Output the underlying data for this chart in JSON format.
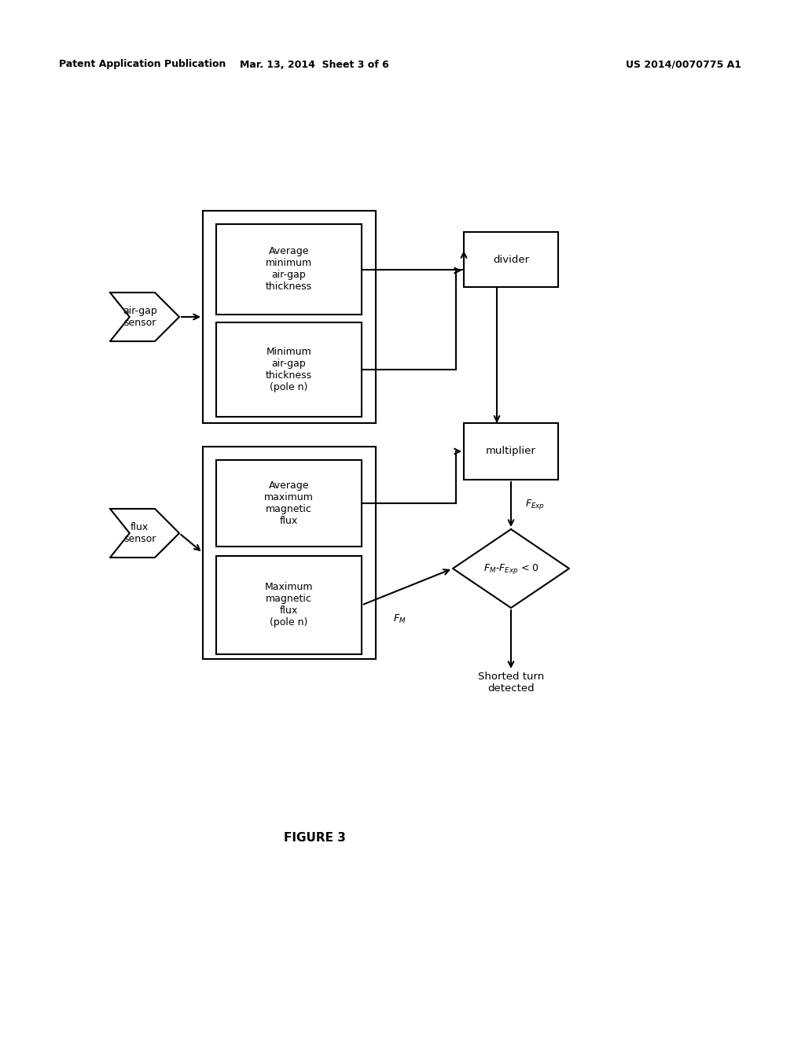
{
  "header_left": "Patent Application Publication",
  "header_mid": "Mar. 13, 2014  Sheet 3 of 6",
  "header_right": "US 2014/0070775 A1",
  "figure_label": "FIGURE 3",
  "bg_color": "#ffffff",
  "line_color": "#000000"
}
